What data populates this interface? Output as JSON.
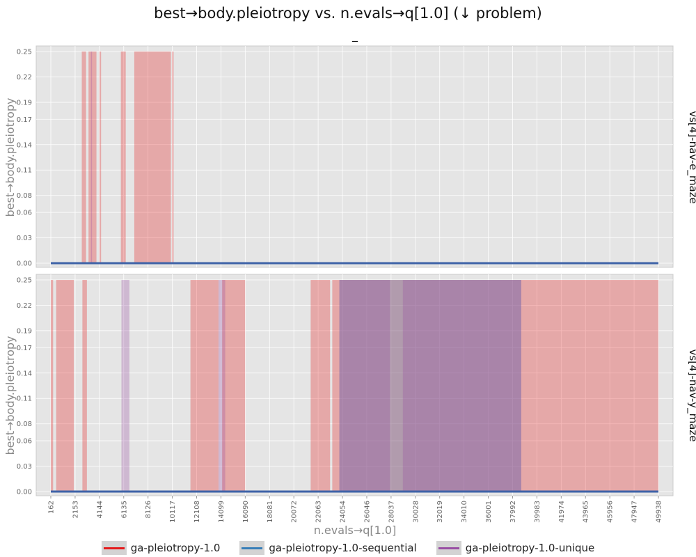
{
  "chart_data": {
    "type": "area",
    "title": "best→body.pleiotropy vs. n.evals→q[1.0] (↓ problem)",
    "subtitle": "_",
    "xlabel": "n.evals→q[1.0]",
    "ylabel": "best→body.pleiotropy",
    "xlim": [
      162,
      49938
    ],
    "ylim": [
      0,
      0.25
    ],
    "x_ticks": [
      162,
      2153,
      4144,
      6135,
      8126,
      10117,
      12108,
      14099,
      16090,
      18081,
      20072,
      22063,
      24054,
      26046,
      28037,
      30028,
      32019,
      34010,
      36001,
      37992,
      39983,
      41974,
      43965,
      45956,
      47947,
      49938
    ],
    "y_ticks": [
      0.0,
      0.03,
      0.06,
      0.08,
      0.11,
      0.14,
      0.17,
      0.19,
      0.22,
      0.25
    ],
    "y_tick_labels": [
      "0.00",
      "0.03",
      "0.06",
      "0.08",
      "0.11",
      "0.14",
      "0.17",
      "0.19",
      "0.22",
      "0.25"
    ],
    "legend_position": "bottom",
    "series_styles": [
      {
        "name": "ga-pleiotropy-1.0",
        "color": "#e41a1c"
      },
      {
        "name": "ga-pleiotropy-1.0-sequential",
        "color": "#377eb8"
      },
      {
        "name": "ga-pleiotropy-1.0-unique",
        "color": "#984ea3"
      }
    ],
    "median_line": {
      "value": 0.0,
      "color": "#3f63a8"
    },
    "facets": [
      {
        "label": "vs[4]-nav-e_maze",
        "series": [
          {
            "name": "ga-pleiotropy-1.0",
            "bands": [
              [
                2700,
                3050,
                0.25
              ],
              [
                3250,
                3900,
                0.25
              ],
              [
                4150,
                4280,
                0.25
              ],
              [
                5900,
                6300,
                0.25
              ],
              [
                7000,
                10000,
                0.25
              ],
              [
                10100,
                10220,
                0.25
              ]
            ]
          },
          {
            "name": "ga-pleiotropy-1.0-sequential",
            "bands": []
          },
          {
            "name": "ga-pleiotropy-1.0-unique",
            "bands": [
              [
                3450,
                3520,
                0.25
              ]
            ]
          }
        ]
      },
      {
        "label": "vs[4]-nav-y_maze",
        "series": [
          {
            "name": "ga-pleiotropy-1.0",
            "bands": [
              [
                162,
                350,
                0.25
              ],
              [
                600,
                2050,
                0.25
              ],
              [
                2750,
                3120,
                0.25
              ],
              [
                11600,
                13900,
                0.25
              ],
              [
                14200,
                16080,
                0.25
              ],
              [
                21450,
                23040,
                0.25
              ],
              [
                23220,
                49938,
                0.25
              ]
            ]
          },
          {
            "name": "ga-pleiotropy-1.0-sequential",
            "bands": [
              [
                23800,
                38700,
                0.25
              ]
            ]
          },
          {
            "name": "ga-pleiotropy-1.0-unique",
            "bands": [
              [
                5950,
                6600,
                0.25
              ],
              [
                13900,
                14450,
                0.25
              ],
              [
                23800,
                27950,
                0.25
              ],
              [
                29000,
                38700,
                0.25
              ]
            ]
          }
        ]
      }
    ]
  }
}
